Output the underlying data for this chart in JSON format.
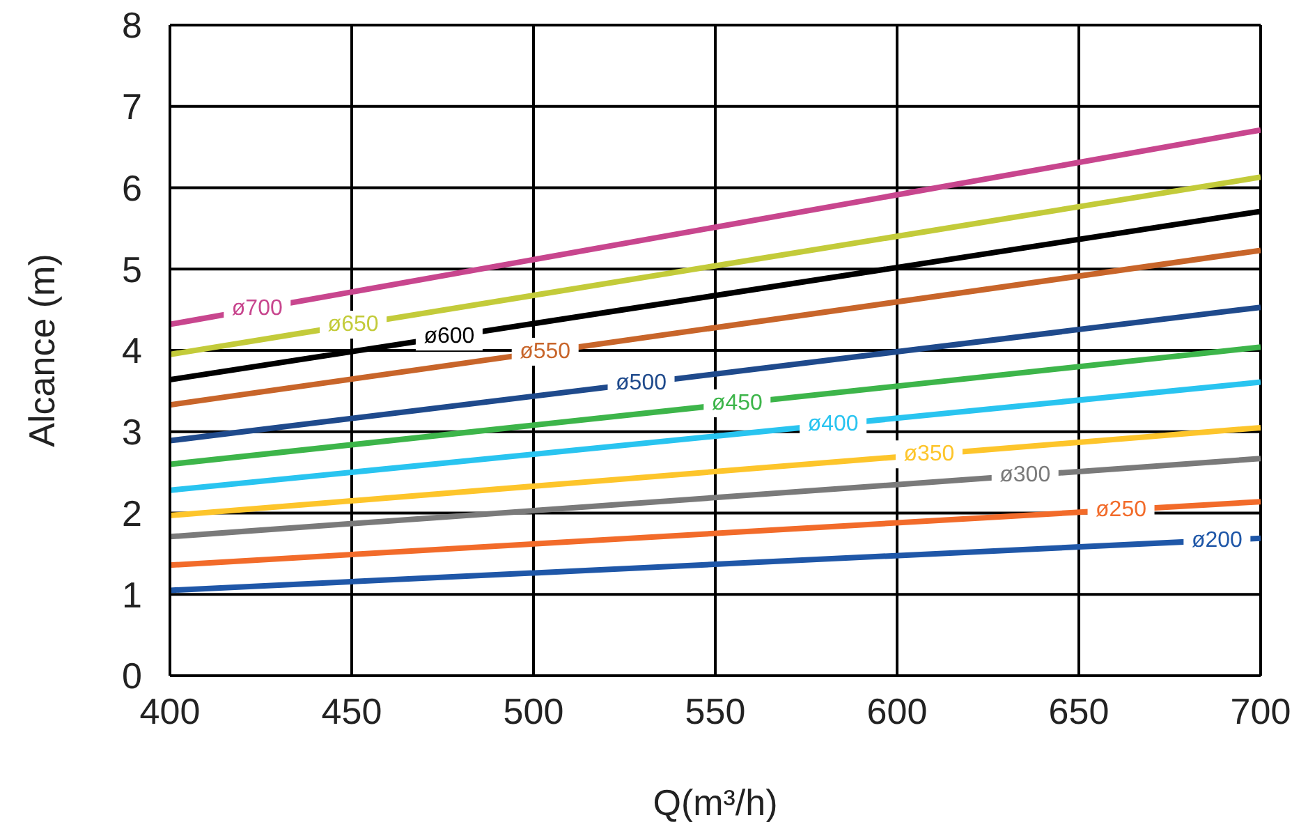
{
  "chart_data": {
    "type": "line",
    "xlabel": "Q(m³/h)",
    "ylabel": "Alcance (m)",
    "x": [
      400,
      700
    ],
    "xlim": [
      400,
      700
    ],
    "xticks": [
      400,
      450,
      500,
      550,
      600,
      650,
      700
    ],
    "ylim": [
      0,
      8
    ],
    "yticks": [
      0,
      1,
      2,
      3,
      4,
      5,
      6,
      7,
      8
    ],
    "grid": true,
    "legend": false,
    "marker": "none",
    "line_style": "solid",
    "series": [
      {
        "name": "ø700",
        "color": "#c8468e",
        "values": [
          4.32,
          6.71
        ]
      },
      {
        "name": "ø650",
        "color": "#c3cb3a",
        "values": [
          3.95,
          6.13
        ]
      },
      {
        "name": "ø600",
        "color": "#000000",
        "values": [
          3.64,
          5.71
        ]
      },
      {
        "name": "ø550",
        "color": "#c8652a",
        "values": [
          3.33,
          5.23
        ]
      },
      {
        "name": "ø500",
        "color": "#1f4a8c",
        "values": [
          2.89,
          4.53
        ]
      },
      {
        "name": "ø450",
        "color": "#3db54a",
        "values": [
          2.6,
          4.04
        ]
      },
      {
        "name": "ø400",
        "color": "#29c4f0",
        "values": [
          2.28,
          3.61
        ]
      },
      {
        "name": "ø350",
        "color": "#fdc52b",
        "values": [
          1.97,
          3.05
        ]
      },
      {
        "name": "ø300",
        "color": "#7a7a7a",
        "values": [
          1.71,
          2.67
        ]
      },
      {
        "name": "ø250",
        "color": "#f26b2a",
        "values": [
          1.36,
          2.14
        ]
      },
      {
        "name": "ø200",
        "color": "#1f57a8",
        "values": [
          1.05,
          1.69
        ]
      }
    ]
  }
}
